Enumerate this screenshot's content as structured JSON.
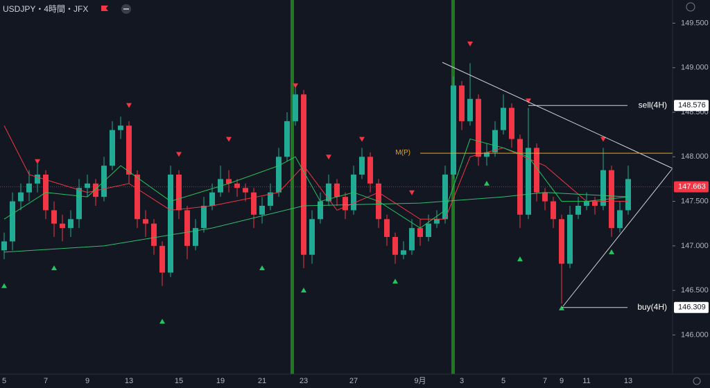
{
  "header": {
    "symbol": "USDJPY・4時間・JFX"
  },
  "chart_data": {
    "type": "candlestick",
    "up_color": "#22ab94",
    "down_color": "#f23645",
    "ylim": [
      145.56,
      149.76
    ],
    "yticks": [
      {
        "value": 146.0,
        "label": "146.000"
      },
      {
        "value": 146.5,
        "label": "146.500"
      },
      {
        "value": 147.0,
        "label": "147.000"
      },
      {
        "value": 147.5,
        "label": "147.500"
      },
      {
        "value": 148.0,
        "label": "148.000"
      },
      {
        "value": 148.5,
        "label": "148.500"
      },
      {
        "value": 149.0,
        "label": "149.000"
      },
      {
        "value": 149.5,
        "label": "149.500"
      }
    ],
    "grid": false,
    "categories": [
      "5",
      null,
      null,
      null,
      null,
      "7",
      null,
      null,
      null,
      null,
      "9",
      null,
      null,
      null,
      null,
      "13",
      null,
      null,
      null,
      null,
      null,
      "15",
      null,
      null,
      null,
      null,
      "19",
      null,
      null,
      null,
      null,
      "21",
      null,
      null,
      null,
      null,
      "23",
      null,
      null,
      null,
      null,
      null,
      "27",
      null,
      null,
      null,
      null,
      null,
      null,
      null,
      "9月",
      null,
      null,
      null,
      null,
      "3",
      null,
      null,
      null,
      null,
      "5",
      null,
      null,
      null,
      null,
      "7",
      null,
      "9",
      null,
      null,
      "11",
      null,
      null,
      null,
      null,
      "13"
    ],
    "open": [
      146.95,
      147.05,
      147.5,
      147.6,
      147.7,
      147.8,
      147.4,
      147.25,
      147.2,
      147.3,
      147.65,
      147.7,
      147.55,
      147.9,
      148.3,
      148.35,
      147.8,
      147.3,
      147.25,
      147.0,
      146.7,
      147.8,
      147.4,
      147.0,
      147.2,
      147.45,
      147.6,
      147.75,
      147.7,
      147.65,
      147.6,
      147.35,
      147.45,
      147.6,
      148.0,
      148.4,
      148.7,
      146.9,
      147.3,
      147.5,
      147.7,
      147.55,
      147.4,
      147.8,
      148.0,
      147.7,
      147.3,
      147.1,
      146.9,
      146.95,
      147.2,
      147.1,
      147.25,
      147.3,
      147.8,
      148.8,
      148.4,
      148.65,
      148.0,
      148.05,
      148.3,
      148.55,
      148.2,
      147.35,
      148.1,
      147.6,
      147.5,
      147.3,
      146.8,
      147.35,
      147.45,
      147.5,
      147.45,
      147.85,
      147.2,
      147.4
    ],
    "high": [
      147.15,
      147.6,
      147.7,
      147.85,
      147.95,
      147.85,
      147.5,
      147.35,
      147.4,
      147.75,
      147.8,
      147.75,
      148.0,
      148.4,
      148.45,
      148.4,
      147.85,
      147.4,
      147.3,
      147.05,
      147.9,
      147.85,
      147.45,
      147.3,
      147.55,
      147.7,
      147.9,
      147.85,
      147.75,
      147.7,
      147.65,
      147.55,
      147.7,
      148.1,
      148.5,
      148.8,
      148.75,
      147.4,
      147.6,
      147.8,
      147.75,
      147.6,
      147.9,
      148.1,
      148.05,
      147.75,
      147.35,
      147.15,
      147.05,
      147.3,
      147.3,
      147.35,
      147.4,
      147.9,
      148.9,
      148.85,
      149.05,
      148.7,
      148.15,
      148.4,
      148.7,
      148.6,
      148.25,
      148.55,
      148.15,
      147.65,
      147.55,
      147.35,
      147.45,
      147.55,
      147.6,
      147.55,
      148.1,
      147.9,
      147.5,
      147.9
    ],
    "low": [
      146.85,
      146.95,
      147.4,
      147.5,
      147.6,
      147.3,
      147.1,
      147.05,
      147.1,
      147.2,
      147.55,
      147.45,
      147.5,
      147.85,
      148.2,
      147.7,
      147.2,
      147.1,
      146.9,
      146.55,
      146.65,
      147.3,
      146.85,
      146.95,
      147.15,
      147.4,
      147.55,
      147.6,
      147.55,
      147.5,
      147.2,
      147.25,
      147.4,
      147.55,
      147.95,
      148.35,
      146.75,
      146.8,
      147.25,
      147.45,
      147.45,
      147.3,
      147.35,
      147.75,
      147.6,
      147.2,
      147.0,
      146.8,
      146.85,
      146.9,
      147.0,
      147.05,
      147.2,
      147.25,
      147.75,
      148.3,
      148.35,
      147.9,
      147.9,
      148.0,
      148.25,
      148.1,
      147.2,
      147.3,
      147.5,
      147.4,
      147.2,
      146.35,
      146.75,
      147.3,
      147.4,
      147.35,
      147.4,
      147.1,
      147.15,
      147.35
    ],
    "close": [
      147.05,
      147.5,
      147.6,
      147.7,
      147.8,
      147.4,
      147.25,
      147.2,
      147.3,
      147.65,
      147.7,
      147.55,
      147.9,
      148.3,
      148.35,
      147.8,
      147.3,
      147.25,
      147.0,
      146.7,
      147.8,
      147.4,
      147.0,
      147.2,
      147.45,
      147.6,
      147.75,
      147.7,
      147.65,
      147.6,
      147.35,
      147.45,
      147.6,
      148.0,
      148.4,
      148.7,
      146.9,
      147.3,
      147.5,
      147.7,
      147.55,
      147.4,
      147.8,
      148.0,
      147.7,
      147.3,
      147.1,
      146.9,
      146.95,
      147.2,
      147.1,
      147.25,
      147.3,
      147.8,
      148.8,
      148.4,
      148.65,
      148.0,
      148.05,
      148.3,
      148.55,
      148.2,
      147.35,
      148.1,
      147.6,
      147.5,
      147.3,
      146.8,
      147.35,
      147.45,
      147.5,
      147.45,
      147.85,
      147.2,
      147.4,
      147.75
    ],
    "lines": [
      {
        "color": "#f23645",
        "x": [
          0,
          3,
          10,
          15,
          20,
          25,
          33,
          36,
          40,
          45,
          50,
          53,
          56,
          60,
          65,
          70,
          75
        ],
        "values": [
          148.35,
          147.8,
          147.6,
          147.7,
          147.4,
          147.45,
          147.6,
          147.9,
          147.4,
          147.6,
          147.3,
          147.3,
          148.0,
          148.1,
          147.9,
          147.5,
          147.5
        ]
      },
      {
        "color": "#22c55e",
        "x": [
          0,
          5,
          10,
          14,
          20,
          27,
          33,
          35,
          38,
          42,
          45,
          50,
          53,
          56,
          60,
          63,
          67,
          70,
          75
        ],
        "values": [
          147.3,
          147.6,
          147.55,
          147.9,
          147.5,
          147.7,
          147.9,
          148.0,
          147.5,
          147.6,
          147.5,
          147.2,
          147.4,
          148.2,
          148.1,
          148.0,
          147.5,
          147.5,
          147.55
        ]
      },
      {
        "color": "#2fbf71",
        "x": [
          0,
          12,
          25,
          36,
          50,
          60,
          65,
          75
        ],
        "values": [
          146.93,
          147.0,
          147.2,
          147.45,
          147.48,
          147.55,
          147.6,
          147.55
        ]
      }
    ],
    "down_markers": {
      "color": "#f23645",
      "x": [
        4,
        15,
        21,
        27,
        35,
        39,
        43,
        49,
        56,
        63,
        72
      ],
      "values": [
        147.95,
        148.58,
        148.03,
        148.2,
        148.8,
        148.0,
        148.2,
        147.6,
        149.27,
        148.63,
        148.2
      ]
    },
    "up_markers": {
      "color": "#22c55e",
      "x": [
        0,
        6,
        19,
        31,
        36,
        47,
        58,
        62,
        67,
        73
      ],
      "values": [
        146.55,
        146.75,
        146.15,
        146.75,
        146.5,
        146.6,
        147.7,
        146.85,
        146.3,
        146.93
      ]
    },
    "levels": [
      {
        "name": "sell(4H)",
        "value": 148.576,
        "from": 63
      },
      {
        "name": "buy(4H)",
        "value": 146.309,
        "from": 67
      },
      {
        "name": "M(P)",
        "value": 148.04,
        "from": 50
      }
    ],
    "last_price": 147.663
  }
}
